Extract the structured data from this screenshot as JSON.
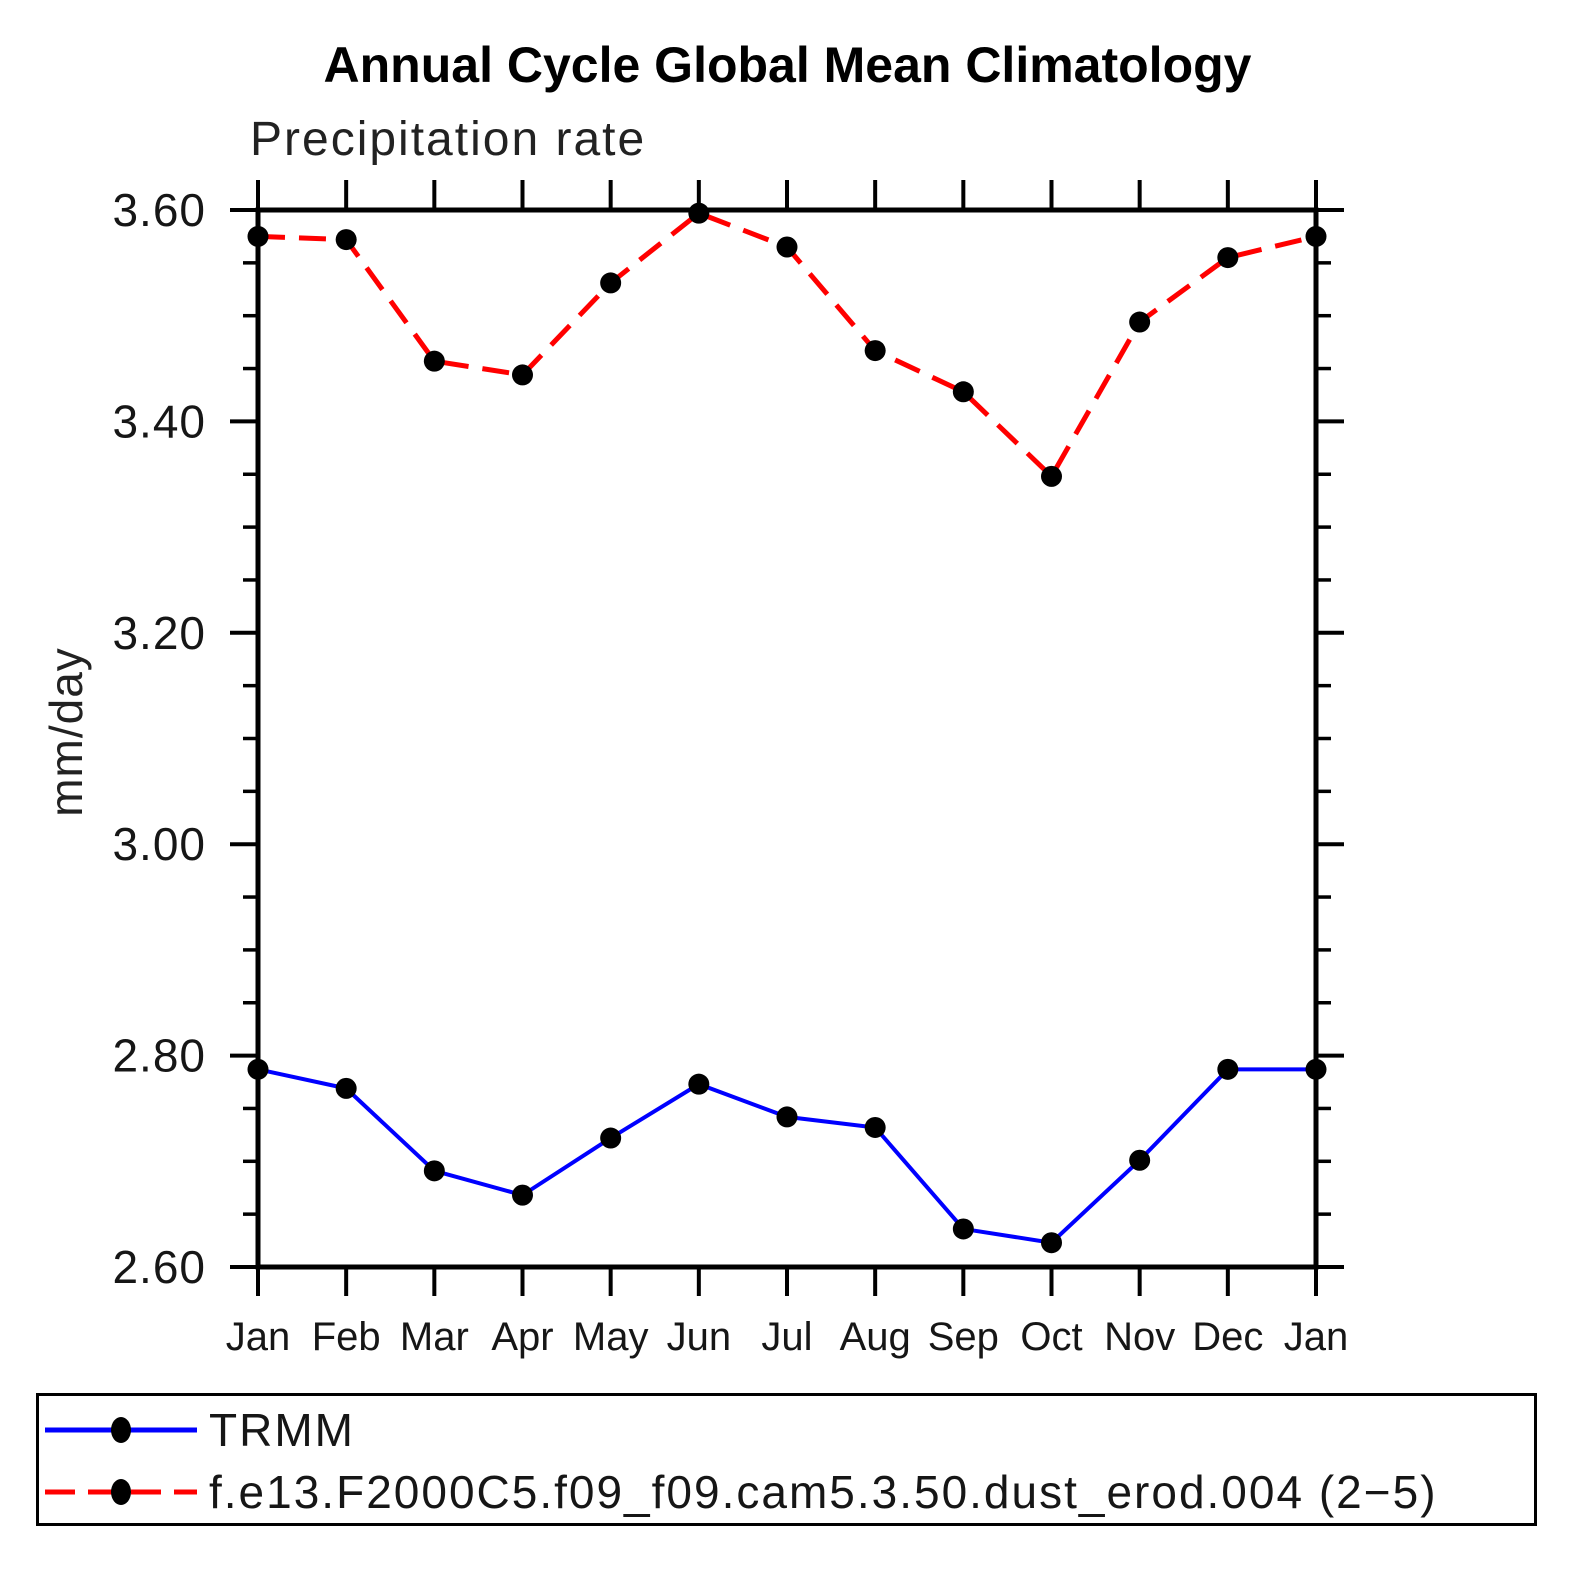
{
  "chart_data": {
    "type": "line",
    "title": "Annual Cycle Global Mean Climatology",
    "subtitle": "Precipitation rate",
    "ylabel": "mm/day",
    "xlabel": "",
    "categories": [
      "Jan",
      "Feb",
      "Mar",
      "Apr",
      "May",
      "Jun",
      "Jul",
      "Aug",
      "Sep",
      "Oct",
      "Nov",
      "Dec",
      "Jan"
    ],
    "ylim": [
      2.6,
      3.6
    ],
    "y_major_ticks": [
      {
        "value": 3.6,
        "label": "3.60"
      },
      {
        "value": 3.4,
        "label": "3.40"
      },
      {
        "value": 3.2,
        "label": "3.20"
      },
      {
        "value": 3.0,
        "label": "3.00"
      },
      {
        "value": 2.8,
        "label": "2.80"
      },
      {
        "value": 2.6,
        "label": "2.60"
      }
    ],
    "y_minor_step": 0.05,
    "grid": false,
    "legend_position": "bottom-box",
    "marker": "filled-circle",
    "marker_color": "#000000",
    "axis_color": "#000000",
    "series": [
      {
        "name": "TRMM",
        "color": "#0000ff",
        "style": "solid",
        "marker_color": "#000000",
        "values": [
          2.787,
          2.769,
          2.691,
          2.668,
          2.722,
          2.773,
          2.742,
          2.732,
          2.636,
          2.623,
          2.701,
          2.787,
          2.787
        ]
      },
      {
        "name": "f.e13.F2000C5.f09_f09.cam5.3.50.dust_erod.004 (2−5)",
        "color": "#ff0000",
        "style": "dashed",
        "marker_color": "#000000",
        "values": [
          3.575,
          3.572,
          3.457,
          3.444,
          3.531,
          3.597,
          3.565,
          3.467,
          3.428,
          3.348,
          3.494,
          3.555,
          3.575
        ]
      }
    ]
  }
}
